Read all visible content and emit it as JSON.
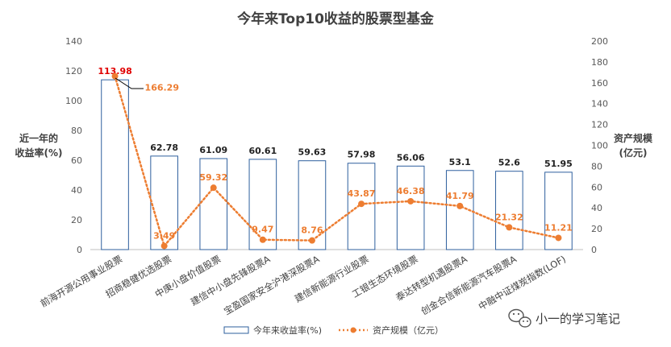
{
  "chart_data": {
    "type": "bar",
    "title": "今年来Top10收益的股票型基金",
    "categories": [
      "前海开源公用事业股票",
      "招商稳健优选股票",
      "中庚小盘价值股票",
      "建信中小盘先锋股票A",
      "宝盈国家安全沪港深股票A",
      "建信新能源行业股票",
      "工银生态环境股票",
      "泰达转型机遇股票A",
      "创金合信新能源汽车股票A",
      "中融中证煤炭指数(LOF)"
    ],
    "series": [
      {
        "name": "今年来收益率(%)",
        "type": "bar",
        "axis": "left",
        "values": [
          113.98,
          62.78,
          61.09,
          60.61,
          59.63,
          57.98,
          56.06,
          53.1,
          52.6,
          51.95
        ],
        "labels": [
          "113.98",
          "62.78",
          "61.09",
          "60.61",
          "59.63",
          "57.98",
          "56.06",
          "53.1",
          "52.6",
          "51.95"
        ],
        "color": "#2e5f9e",
        "highlight_color": "#e00000"
      },
      {
        "name": "资产规模（亿元）",
        "type": "line",
        "axis": "right",
        "values": [
          166.29,
          3.49,
          59.32,
          9.47,
          8.76,
          43.87,
          46.38,
          41.79,
          21.32,
          11.21
        ],
        "labels": [
          "166.29",
          "3.49",
          "59.32",
          "9.47",
          "8.76",
          "43.87",
          "46.38",
          "41.79",
          "21.32",
          "11.21"
        ],
        "color": "#ed7d31"
      }
    ],
    "y_left": {
      "label_lines": [
        "近一年的",
        "收益率(%)"
      ],
      "min": 0,
      "max": 140,
      "step": 20,
      "ticks": [
        "0",
        "20",
        "40",
        "60",
        "80",
        "100",
        "120",
        "140"
      ]
    },
    "y_right": {
      "label_lines": [
        "资产规模",
        "(亿元)"
      ],
      "min": 0,
      "max": 200,
      "step": 20,
      "ticks": [
        "0",
        "20",
        "40",
        "60",
        "80",
        "100",
        "120",
        "140",
        "160",
        "180",
        "200"
      ]
    },
    "grid": false,
    "legend_position": "bottom"
  },
  "watermark": {
    "text": "小一的学习笔记",
    "icon": "wechat-icon"
  }
}
